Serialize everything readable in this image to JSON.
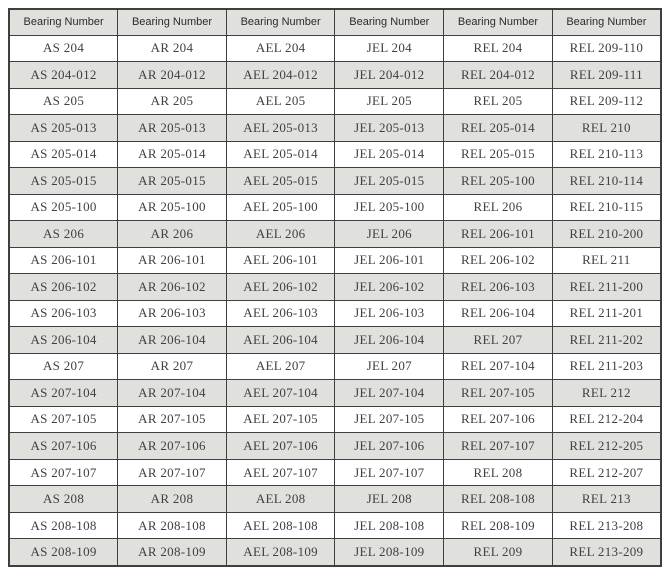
{
  "colors": {
    "page_bg": "#ffffff",
    "border": "#3f3f3f",
    "header_bg": "#e0e0dc",
    "alt_row_bg": "#e0e0dc",
    "row_bg": "#ffffff",
    "header_text": "#2b2b2b",
    "body_text": "#404040"
  },
  "table": {
    "headers": [
      "Bearing Number",
      "Bearing Number",
      "Bearing Number",
      "Bearing Number",
      "Bearing Number",
      "Bearing Number"
    ],
    "rows": [
      [
        "AS 204",
        "AR 204",
        "AEL 204",
        "JEL 204",
        "REL 204",
        "REL 209-110"
      ],
      [
        "AS 204-012",
        "AR 204-012",
        "AEL 204-012",
        "JEL 204-012",
        "REL 204-012",
        "REL 209-111"
      ],
      [
        "AS 205",
        "AR 205",
        "AEL 205",
        "JEL 205",
        "REL 205",
        "REL 209-112"
      ],
      [
        "AS 205-013",
        "AR 205-013",
        "AEL 205-013",
        "JEL 205-013",
        "REL 205-014",
        "REL 210"
      ],
      [
        "AS 205-014",
        "AR 205-014",
        "AEL 205-014",
        "JEL 205-014",
        "REL 205-015",
        "REL 210-113"
      ],
      [
        "AS 205-015",
        "AR 205-015",
        "AEL 205-015",
        "JEL 205-015",
        "REL 205-100",
        "REL 210-114"
      ],
      [
        "AS 205-100",
        "AR 205-100",
        "AEL 205-100",
        "JEL 205-100",
        "REL 206",
        "REL 210-115"
      ],
      [
        "AS 206",
        "AR 206",
        "AEL 206",
        "JEL 206",
        "REL 206-101",
        "REL 210-200"
      ],
      [
        "AS 206-101",
        "AR 206-101",
        "AEL 206-101",
        "JEL 206-101",
        "REL 206-102",
        "REL 211"
      ],
      [
        "AS 206-102",
        "AR 206-102",
        "AEL 206-102",
        "JEL 206-102",
        "REL 206-103",
        "REL 211-200"
      ],
      [
        "AS 206-103",
        "AR 206-103",
        "AEL 206-103",
        "JEL 206-103",
        "REL 206-104",
        "REL 211-201"
      ],
      [
        "AS 206-104",
        "AR 206-104",
        "AEL 206-104",
        "JEL 206-104",
        "REL 207",
        "REL 211-202"
      ],
      [
        "AS 207",
        "AR 207",
        "AEL 207",
        "JEL 207",
        "REL 207-104",
        "REL 211-203"
      ],
      [
        "AS 207-104",
        "AR 207-104",
        "AEL 207-104",
        "JEL 207-104",
        "REL 207-105",
        "REL 212"
      ],
      [
        "AS 207-105",
        "AR 207-105",
        "AEL 207-105",
        "JEL 207-105",
        "REL 207-106",
        "REL 212-204"
      ],
      [
        "AS 207-106",
        "AR 207-106",
        "AEL 207-106",
        "JEL 207-106",
        "REL 207-107",
        "REL 212-205"
      ],
      [
        "AS 207-107",
        "AR 207-107",
        "AEL 207-107",
        "JEL 207-107",
        "REL 208",
        "REL 212-207"
      ],
      [
        "AS 208",
        "AR 208",
        "AEL 208",
        "JEL 208",
        "REL 208-108",
        "REL 213"
      ],
      [
        "AS 208-108",
        "AR 208-108",
        "AEL 208-108",
        "JEL 208-108",
        "REL 208-109",
        "REL 213-208"
      ],
      [
        "AS 208-109",
        "AR 208-109",
        "AEL 208-109",
        "JEL 208-109",
        "REL 209",
        "REL 213-209"
      ]
    ]
  }
}
